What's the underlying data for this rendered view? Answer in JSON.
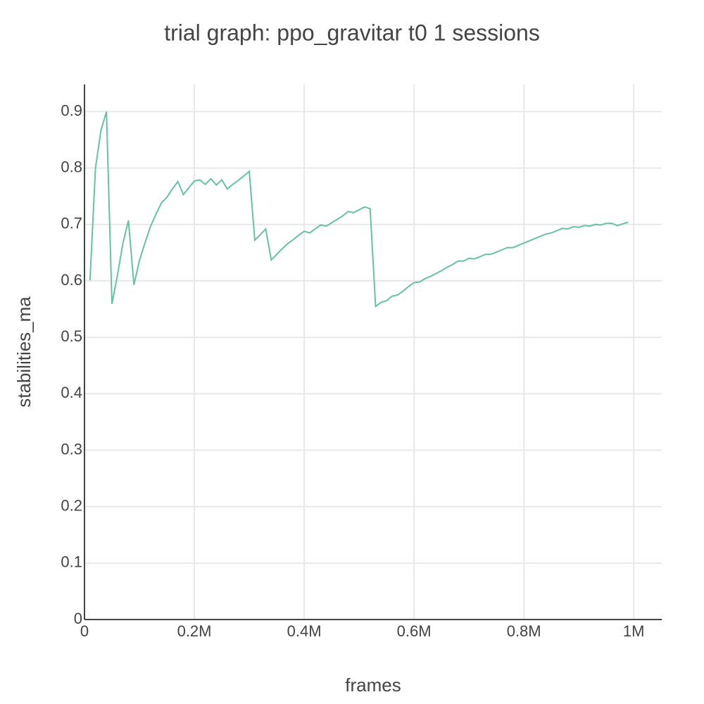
{
  "chart_data": {
    "type": "line",
    "title": "trial graph: ppo_gravitar t0 1 sessions",
    "x_label": "frames",
    "y_label": "stabilities_ma",
    "x": [
      10000,
      20000,
      30000,
      40000,
      50000,
      60000,
      70000,
      80000,
      90000,
      100000,
      110000,
      120000,
      130000,
      140000,
      150000,
      160000,
      170000,
      180000,
      190000,
      200000,
      210000,
      220000,
      230000,
      240000,
      250000,
      260000,
      270000,
      280000,
      290000,
      300000,
      310000,
      320000,
      330000,
      340000,
      350000,
      360000,
      370000,
      380000,
      390000,
      400000,
      410000,
      420000,
      430000,
      440000,
      450000,
      460000,
      470000,
      480000,
      490000,
      500000,
      510000,
      520000,
      530000,
      540000,
      550000,
      560000,
      570000,
      580000,
      590000,
      600000,
      610000,
      620000,
      630000,
      640000,
      650000,
      660000,
      670000,
      680000,
      690000,
      700000,
      710000,
      720000,
      730000,
      740000,
      750000,
      760000,
      770000,
      780000,
      790000,
      800000,
      810000,
      820000,
      830000,
      840000,
      850000,
      860000,
      870000,
      880000,
      890000,
      900000,
      910000,
      920000,
      930000,
      940000,
      950000,
      960000,
      970000,
      980000,
      990000
    ],
    "series": [
      {
        "name": "stabilities_ma",
        "color": "#66c2a5",
        "values": [
          0.601,
          0.8,
          0.867,
          0.9,
          0.559,
          0.61,
          0.667,
          0.707,
          0.593,
          0.636,
          0.667,
          0.696,
          0.718,
          0.738,
          0.748,
          0.763,
          0.776,
          0.753,
          0.765,
          0.777,
          0.779,
          0.771,
          0.781,
          0.77,
          0.779,
          0.763,
          0.771,
          0.778,
          0.786,
          0.794,
          0.672,
          0.682,
          0.692,
          0.637,
          0.647,
          0.657,
          0.666,
          0.673,
          0.681,
          0.688,
          0.685,
          0.692,
          0.699,
          0.697,
          0.703,
          0.709,
          0.715,
          0.723,
          0.721,
          0.726,
          0.731,
          0.728,
          0.555,
          0.562,
          0.565,
          0.573,
          0.575,
          0.582,
          0.59,
          0.597,
          0.598,
          0.604,
          0.608,
          0.613,
          0.618,
          0.624,
          0.629,
          0.635,
          0.635,
          0.64,
          0.639,
          0.643,
          0.647,
          0.647,
          0.651,
          0.655,
          0.659,
          0.659,
          0.663,
          0.667,
          0.671,
          0.675,
          0.679,
          0.683,
          0.685,
          0.689,
          0.693,
          0.692,
          0.696,
          0.695,
          0.698,
          0.697,
          0.7,
          0.699,
          0.702,
          0.702,
          0.698,
          0.701,
          0.704
        ]
      }
    ],
    "xlim": [
      0,
      1051000
    ],
    "ylim": [
      0,
      0.948
    ],
    "xticks": [
      0,
      {
        "value": 200000,
        "label": "0.2M"
      },
      {
        "value": 400000,
        "label": "0.4M"
      },
      {
        "value": 600000,
        "label": "0.6M"
      },
      {
        "value": 800000,
        "label": "0.8M"
      },
      {
        "value": 1000000,
        "label": "1M"
      }
    ],
    "yticks": [
      0,
      0.1,
      0.2,
      0.3,
      0.4,
      0.5,
      0.6,
      0.7,
      0.8,
      0.9
    ],
    "grid": true
  }
}
